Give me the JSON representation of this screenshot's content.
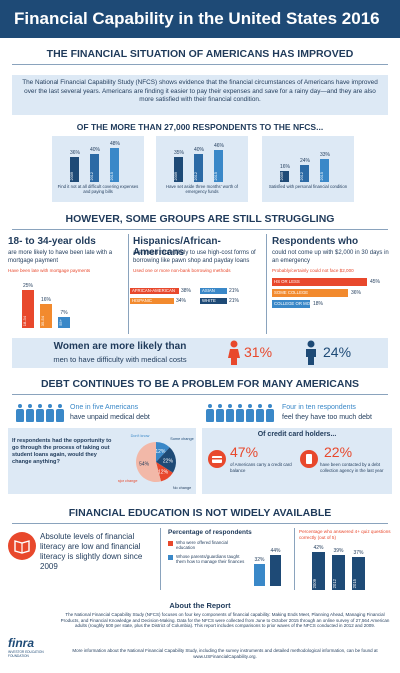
{
  "title": "Financial Capability in the United States 2016",
  "section1": {
    "title": "THE FINANCIAL SITUATION OF AMERICANS HAS IMPROVED",
    "intro": "The National Financial Capability Study (NFCS) shows evidence that the financial circumstances of Americans have improved over the last several years. Americans are finding it easier to pay their expenses and save for a rainy day—and they are also more satisfied with their financial condition.",
    "subhead": "OF THE MORE THAN 27,000 RESPONDENTS TO THE NFCS...",
    "cards": [
      {
        "caption": "Find it not at all difficult covering expenses and paying bills",
        "values": [
          "36%",
          "40%",
          "48%"
        ],
        "years": [
          "2009",
          "2012",
          "2015"
        ],
        "fractions": [
          0.36,
          0.4,
          0.48
        ]
      },
      {
        "caption": "Have set aside three months' worth of emergency funds",
        "values": [
          "35%",
          "40%",
          "46%"
        ],
        "years": [
          "2009",
          "2012",
          "2015"
        ],
        "fractions": [
          0.35,
          0.4,
          0.46
        ]
      },
      {
        "caption": "Satisfied with personal financial condition",
        "values": [
          "16%",
          "24%",
          "33%"
        ],
        "years": [
          "2009",
          "2012",
          "2015"
        ],
        "fractions": [
          0.16,
          0.24,
          0.33
        ]
      }
    ]
  },
  "section2": {
    "title": "HOWEVER, SOME GROUPS ARE STILL STRUGGLING",
    "col1": {
      "head": "18- to 34-year olds",
      "sub": "are more likely to have been late with a mortgage payment",
      "note": "Have been late with mortgage payments",
      "bars": [
        {
          "label": "18-34",
          "value": "25%",
          "fraction": 0.25,
          "color": "#e8482c"
        },
        {
          "label": "35-54",
          "value": "16%",
          "fraction": 0.16,
          "color": "#f28a2e"
        },
        {
          "label": "55+",
          "value": "7%",
          "fraction": 0.07,
          "color": "#3a88c8"
        }
      ]
    },
    "col2": {
      "head": "Hispanics/African-Americans",
      "sub": "are much more likely to use high-cost forms of borrowing like pawn shop and payday loans",
      "note": "Used one or more non-bank borrowing methods",
      "rows": [
        {
          "label": "AFRICAN-AMERICAN",
          "value": "38%",
          "fraction": 0.38,
          "color": "#e8482c"
        },
        {
          "label": "ASIAN",
          "value": "21%",
          "fraction": 0.21,
          "color": "#3a88c8"
        },
        {
          "label": "HISPANIC",
          "value": "34%",
          "fraction": 0.34,
          "color": "#f28a2e"
        },
        {
          "label": "WHITE",
          "value": "21%",
          "fraction": 0.21,
          "color": "#1e4a76"
        }
      ]
    },
    "col3": {
      "head": "Respondents who",
      "sub": "could not come up with $2,000 in 30 days in an emergency",
      "note": "Probably/certainly could not face $2,000",
      "rows": [
        {
          "label": "HS OR LESS",
          "value": "45%",
          "fraction": 0.45,
          "color": "#e8482c"
        },
        {
          "label": "SOME COLLEGE",
          "value": "36%",
          "fraction": 0.36,
          "color": "#f28a2e"
        },
        {
          "label": "COLLEGE OR MORE",
          "value": "18%",
          "fraction": 0.18,
          "color": "#3a88c8"
        }
      ]
    },
    "women": {
      "line1": "Women are more likely than",
      "line2": "men to have difficulty with medical costs",
      "women_value": "31%",
      "men_value": "24%",
      "women_color": "#e8482c",
      "men_color": "#1e4a76"
    }
  },
  "section3": {
    "title": "DEBT CONTINUES TO BE A PROBLEM FOR MANY AMERICANS",
    "left_text_1": "One in five Americans",
    "left_text_2": "have unpaid medical debt",
    "right_text_1": "Four in ten respondents",
    "right_text_2": "feel they have too much debt",
    "student": {
      "text": "If respondents had the opportunity to go through the process of taking out student loans again, would they change anything?",
      "slices": [
        {
          "label": "Don't know",
          "value": "12%",
          "fraction": 0.12,
          "color": "#3a88c8"
        },
        {
          "label": "Some change",
          "value": "22%",
          "fraction": 0.22,
          "color": "#1e4a76"
        },
        {
          "label": "Major change",
          "value": "12%",
          "fraction": 0.12,
          "color": "#e8482c"
        },
        {
          "label": "No change",
          "value": "54%",
          "fraction": 0.54,
          "color": "#f2b8a8"
        }
      ]
    },
    "credit": {
      "title": "Of credit card holders...",
      "stat1_value": "47%",
      "stat1_text": "of Americans carry a credit card balance",
      "stat2_value": "22%",
      "stat2_text": "have been contacted by a debt collection agency in the last year"
    }
  },
  "section4": {
    "title": "FINANCIAL EDUCATION IS NOT WIDELY AVAILABLE",
    "left_text": "Absolute levels of financial literacy are low and financial literacy is slightly down since 2009",
    "middle_title": "Percentage of respondents",
    "legend": [
      {
        "text": "Who were offered financial education",
        "color": "#e8482c"
      },
      {
        "text": "Whose parents/guardians taught them how to manage their finances",
        "color": "#3a88c8"
      }
    ],
    "middle_values": [
      {
        "value": "32%",
        "fraction": 0.32,
        "color": "#3a88c8"
      },
      {
        "value": "44%",
        "fraction": 0.44,
        "color": "#1e4a76"
      }
    ],
    "right_title": "Percentage who answered 4+ quiz questions correctly (out of 5)",
    "right_bars": [
      {
        "year": "2009",
        "value": "42%",
        "fraction": 0.42
      },
      {
        "year": "2012",
        "value": "39%",
        "fraction": 0.39
      },
      {
        "year": "2015",
        "value": "37%",
        "fraction": 0.37
      }
    ]
  },
  "about": {
    "title": "About the Report",
    "body": "The National Financial Capability Study (NFCS) focuses on four key components of financial capability: Making Ends Meet, Planning Ahead, Managing Financial Products, and Financial Knowledge and Decision-Making. Data for the NFCS were collected from June to October 2015 through an online survey of 27,564 American adults (roughly 500 per state, plus the District of Columbia). This report includes comparisons to prior waves of the NFCS conducted in 2012 and 2009.",
    "footer": "More information about the National Financial Capability Study, including the survey instruments and detailed methodological information, can be found at www.USFinancialCapability.org.",
    "logo_text": "finra",
    "logo_sub": "INVESTOR EDUCATION FOUNDATION"
  }
}
